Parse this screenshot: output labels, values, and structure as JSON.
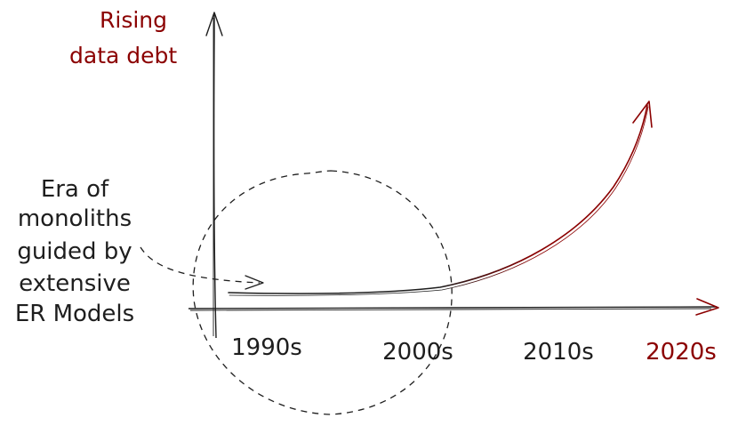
{
  "colors": {
    "ink": "#1e1e1e",
    "accent": "#8b0000"
  },
  "y_axis_label": {
    "line1": "Rising",
    "line2": "data debt"
  },
  "x_ticks": [
    {
      "label": "1990s",
      "highlight": false
    },
    {
      "label": "2000s",
      "highlight": false
    },
    {
      "label": "2010s",
      "highlight": false
    },
    {
      "label": "2020s",
      "highlight": true
    }
  ],
  "annotation": {
    "lines": [
      "Era of",
      "monoliths",
      "guided by",
      "extensive",
      "ER Models"
    ]
  }
}
